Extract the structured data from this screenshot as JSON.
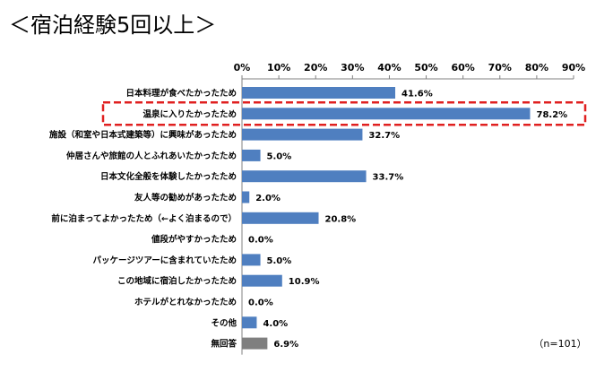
{
  "title": "＜宿泊経験5回以上＞",
  "note": "（n=101）",
  "colors": {
    "bar": "#4F7FC0",
    "bar_other": "#7F7F7F",
    "highlight_border": "#E02020",
    "axis": "#808080"
  },
  "chart_data": {
    "type": "bar",
    "orientation": "horizontal",
    "title": "＜宿泊経験5回以上＞",
    "xlim": [
      0,
      90
    ],
    "ticks": [
      0,
      10,
      20,
      30,
      40,
      50,
      60,
      70,
      80,
      90
    ],
    "tick_labels": [
      "0%",
      "10%",
      "20%",
      "30%",
      "40%",
      "50%",
      "60%",
      "70%",
      "80%",
      "90%"
    ],
    "x_axis_position": "top",
    "grid": false,
    "categories": [
      "日本料理が食べたかったため",
      "温泉に入りたかったため",
      "施設（和室や日本式建築等）に興味があったため",
      "仲居さんや旅館の人とふれあいたかったため",
      "日本文化全般を体験したかったため",
      "友人等の勧めがあったため",
      "前に泊まってよかったため（←よく泊まるので）",
      "値段がやすかったため",
      "パッケージツアーに含まれていたため",
      "この地域に宿泊したかったため",
      "ホテルがとれなかったため",
      "その他",
      "無回答"
    ],
    "values": [
      41.6,
      78.2,
      32.7,
      5.0,
      33.7,
      2.0,
      20.8,
      0.0,
      5.0,
      10.9,
      0.0,
      4.0,
      6.9
    ],
    "value_labels": [
      "41.6%",
      "78.2%",
      "32.7%",
      "5.0%",
      "33.7%",
      "2.0%",
      "20.8%",
      "0.0%",
      "5.0%",
      "10.9%",
      "0.0%",
      "4.0%",
      "6.9%"
    ],
    "highlighted_category": "温泉に入りたかったため",
    "gray_category": "無回答"
  }
}
